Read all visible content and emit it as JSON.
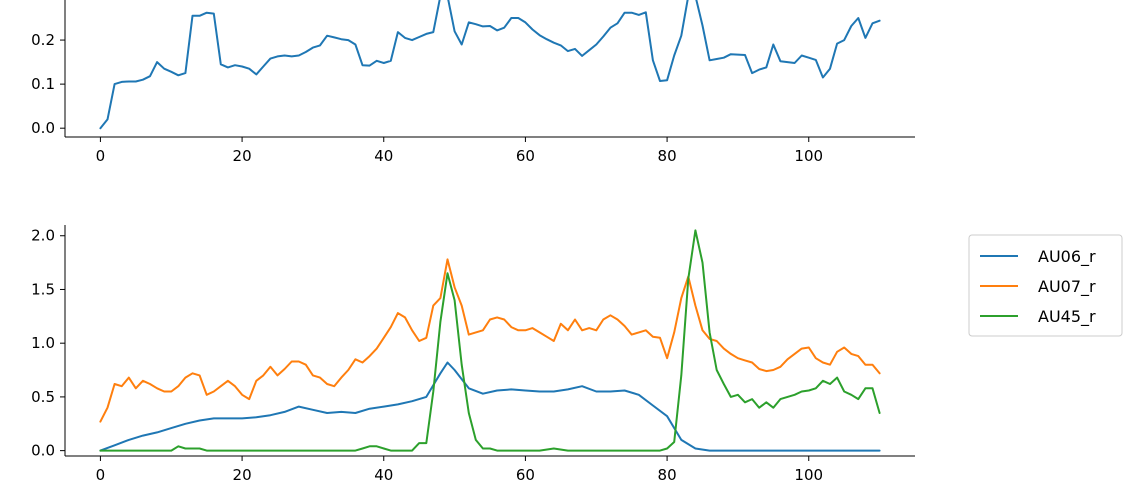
{
  "chart_data": [
    {
      "type": "line",
      "title": "",
      "xlabel": "",
      "ylabel": "",
      "xlim": [
        -5,
        115
      ],
      "ylim": [
        -0.02,
        0.3
      ],
      "xticks": [
        0,
        20,
        40,
        60,
        80,
        100
      ],
      "xtick_labels": [
        "0",
        "20",
        "40",
        "60",
        "80",
        "100"
      ],
      "yticks": [
        0.0,
        0.1,
        0.2
      ],
      "ytick_labels": [
        "0.0",
        "0.1",
        "0.2"
      ],
      "grid": false,
      "series": [
        {
          "color": "#1f77b4",
          "x": [
            0,
            1,
            2,
            3,
            4,
            5,
            6,
            7,
            8,
            9,
            10,
            11,
            12,
            13,
            14,
            15,
            16,
            17,
            18,
            19,
            20,
            21,
            22,
            23,
            24,
            25,
            26,
            27,
            28,
            29,
            30,
            31,
            32,
            33,
            34,
            35,
            36,
            37,
            38,
            39,
            40,
            41,
            42,
            43,
            44,
            45,
            46,
            47,
            48,
            48.5,
            49,
            50,
            51,
            52,
            53,
            54,
            55,
            56,
            57,
            58,
            59,
            60,
            61,
            62,
            63,
            64,
            65,
            66,
            67,
            68,
            69,
            70,
            71,
            72,
            73,
            74,
            75,
            76,
            77,
            78,
            79,
            80,
            81,
            82,
            83,
            83.5,
            84,
            85,
            86,
            87,
            88,
            89,
            90,
            91,
            92,
            93,
            94,
            95,
            96,
            97,
            98,
            99,
            100,
            101,
            102,
            103,
            104,
            105,
            106,
            107,
            108,
            109,
            110
          ],
          "values": [
            0.0,
            0.02,
            0.1,
            0.105,
            0.106,
            0.106,
            0.11,
            0.118,
            0.15,
            0.135,
            0.128,
            0.12,
            0.125,
            0.255,
            0.255,
            0.262,
            0.26,
            0.145,
            0.138,
            0.143,
            0.14,
            0.135,
            0.122,
            0.14,
            0.158,
            0.163,
            0.165,
            0.163,
            0.165,
            0.173,
            0.183,
            0.188,
            0.21,
            0.206,
            0.202,
            0.2,
            0.19,
            0.143,
            0.142,
            0.153,
            0.148,
            0.153,
            0.218,
            0.205,
            0.2,
            0.207,
            0.214,
            0.218,
            0.3,
            0.3,
            0.3,
            0.22,
            0.19,
            0.24,
            0.236,
            0.231,
            0.232,
            0.222,
            0.228,
            0.25,
            0.25,
            0.24,
            0.224,
            0.211,
            0.202,
            0.194,
            0.188,
            0.175,
            0.18,
            0.164,
            0.177,
            0.19,
            0.208,
            0.228,
            0.238,
            0.262,
            0.262,
            0.257,
            0.263,
            0.154,
            0.107,
            0.109,
            0.165,
            0.21,
            0.3,
            0.3,
            0.3,
            0.233,
            0.154,
            0.157,
            0.16,
            0.168,
            0.167,
            0.166,
            0.125,
            0.133,
            0.138,
            0.19,
            0.152,
            0.15,
            0.148,
            0.165,
            0.16,
            0.155,
            0.115,
            0.135,
            0.192,
            0.2,
            0.232,
            0.25,
            0.205,
            0.238,
            0.244
          ]
        }
      ]
    },
    {
      "type": "line",
      "title": "",
      "xlabel": "",
      "ylabel": "",
      "xlim": [
        -5,
        115
      ],
      "ylim": [
        -0.05,
        2.1
      ],
      "xticks": [
        0,
        20,
        40,
        60,
        80,
        100
      ],
      "xtick_labels": [
        "0",
        "20",
        "40",
        "60",
        "80",
        "100"
      ],
      "yticks": [
        0.0,
        0.5,
        1.0,
        1.5,
        2.0
      ],
      "ytick_labels": [
        "0.0",
        "0.5",
        "1.0",
        "1.5",
        "2.0"
      ],
      "grid": false,
      "legend_position": "outside-right",
      "series": [
        {
          "name": "AU06_r",
          "color": "#1f77b4",
          "x": [
            0,
            2,
            4,
            6,
            8,
            10,
            12,
            14,
            16,
            18,
            20,
            22,
            24,
            26,
            28,
            30,
            32,
            34,
            36,
            38,
            40,
            42,
            44,
            46,
            48,
            49,
            50,
            52,
            54,
            56,
            58,
            60,
            62,
            64,
            66,
            68,
            70,
            72,
            74,
            76,
            78,
            80,
            82,
            84,
            86,
            90,
            100,
            110
          ],
          "values": [
            0.0,
            0.05,
            0.1,
            0.14,
            0.17,
            0.21,
            0.25,
            0.28,
            0.3,
            0.3,
            0.3,
            0.31,
            0.33,
            0.36,
            0.41,
            0.38,
            0.35,
            0.36,
            0.35,
            0.39,
            0.41,
            0.43,
            0.46,
            0.5,
            0.72,
            0.82,
            0.75,
            0.58,
            0.53,
            0.56,
            0.57,
            0.56,
            0.55,
            0.55,
            0.57,
            0.6,
            0.55,
            0.55,
            0.56,
            0.52,
            0.42,
            0.32,
            0.1,
            0.02,
            0.0,
            0.0,
            0.0,
            0.0
          ]
        },
        {
          "name": "AU07_r",
          "color": "#ff7f0e",
          "x": [
            0,
            1,
            2,
            3,
            4,
            5,
            6,
            7,
            8,
            9,
            10,
            11,
            12,
            13,
            14,
            15,
            16,
            17,
            18,
            19,
            20,
            21,
            22,
            23,
            24,
            25,
            26,
            27,
            28,
            29,
            30,
            31,
            32,
            33,
            34,
            35,
            36,
            37,
            38,
            39,
            40,
            41,
            42,
            43,
            44,
            45,
            46,
            47,
            48,
            49,
            50,
            51,
            52,
            53,
            54,
            55,
            56,
            57,
            58,
            59,
            60,
            61,
            62,
            63,
            64,
            65,
            66,
            67,
            68,
            69,
            70,
            71,
            72,
            73,
            74,
            75,
            76,
            77,
            78,
            79,
            80,
            81,
            82,
            83,
            84,
            85,
            86,
            87,
            88,
            89,
            90,
            91,
            92,
            93,
            94,
            95,
            96,
            97,
            98,
            99,
            100,
            101,
            102,
            103,
            104,
            105,
            106,
            107,
            108,
            109,
            110
          ],
          "values": [
            0.27,
            0.4,
            0.62,
            0.6,
            0.68,
            0.58,
            0.65,
            0.62,
            0.58,
            0.55,
            0.55,
            0.6,
            0.68,
            0.72,
            0.7,
            0.52,
            0.55,
            0.6,
            0.65,
            0.6,
            0.52,
            0.48,
            0.65,
            0.7,
            0.78,
            0.7,
            0.76,
            0.83,
            0.83,
            0.8,
            0.7,
            0.68,
            0.62,
            0.6,
            0.68,
            0.75,
            0.85,
            0.82,
            0.88,
            0.95,
            1.05,
            1.15,
            1.28,
            1.24,
            1.12,
            1.02,
            1.05,
            1.35,
            1.42,
            1.78,
            1.52,
            1.35,
            1.08,
            1.1,
            1.12,
            1.22,
            1.24,
            1.22,
            1.15,
            1.12,
            1.12,
            1.14,
            1.1,
            1.06,
            1.02,
            1.18,
            1.12,
            1.22,
            1.12,
            1.14,
            1.12,
            1.22,
            1.26,
            1.22,
            1.16,
            1.08,
            1.1,
            1.12,
            1.06,
            1.05,
            0.86,
            1.1,
            1.42,
            1.62,
            1.35,
            1.12,
            1.04,
            1.02,
            0.95,
            0.9,
            0.86,
            0.84,
            0.82,
            0.76,
            0.74,
            0.75,
            0.78,
            0.85,
            0.9,
            0.95,
            0.96,
            0.86,
            0.82,
            0.8,
            0.92,
            0.96,
            0.9,
            0.88,
            0.8,
            0.8,
            0.72
          ]
        },
        {
          "name": "AU45_r",
          "color": "#2ca02c",
          "x": [
            0,
            10,
            11,
            12,
            13,
            14,
            15,
            16,
            36,
            37,
            38,
            39,
            40,
            41,
            44,
            45,
            46,
            47,
            48,
            49,
            50,
            51,
            52,
            53,
            54,
            55,
            56,
            60,
            62,
            64,
            66,
            68,
            76,
            78,
            79,
            80,
            81,
            82,
            83,
            84,
            85,
            86,
            87,
            88,
            89,
            90,
            91,
            92,
            93,
            94,
            95,
            96,
            97,
            98,
            99,
            100,
            101,
            102,
            103,
            104,
            105,
            106,
            107,
            108,
            109,
            110
          ],
          "values": [
            0.0,
            0.0,
            0.04,
            0.02,
            0.02,
            0.02,
            0.0,
            0.0,
            0.0,
            0.02,
            0.04,
            0.04,
            0.02,
            0.0,
            0.0,
            0.07,
            0.07,
            0.55,
            1.2,
            1.65,
            1.4,
            0.8,
            0.35,
            0.1,
            0.02,
            0.02,
            0.0,
            0.0,
            0.0,
            0.02,
            0.0,
            0.0,
            0.0,
            0.0,
            0.0,
            0.02,
            0.08,
            0.7,
            1.6,
            2.05,
            1.75,
            1.1,
            0.75,
            0.62,
            0.5,
            0.52,
            0.45,
            0.48,
            0.4,
            0.45,
            0.4,
            0.48,
            0.5,
            0.52,
            0.55,
            0.56,
            0.58,
            0.65,
            0.62,
            0.68,
            0.55,
            0.52,
            0.48,
            0.58,
            0.58,
            0.35
          ]
        }
      ]
    }
  ]
}
